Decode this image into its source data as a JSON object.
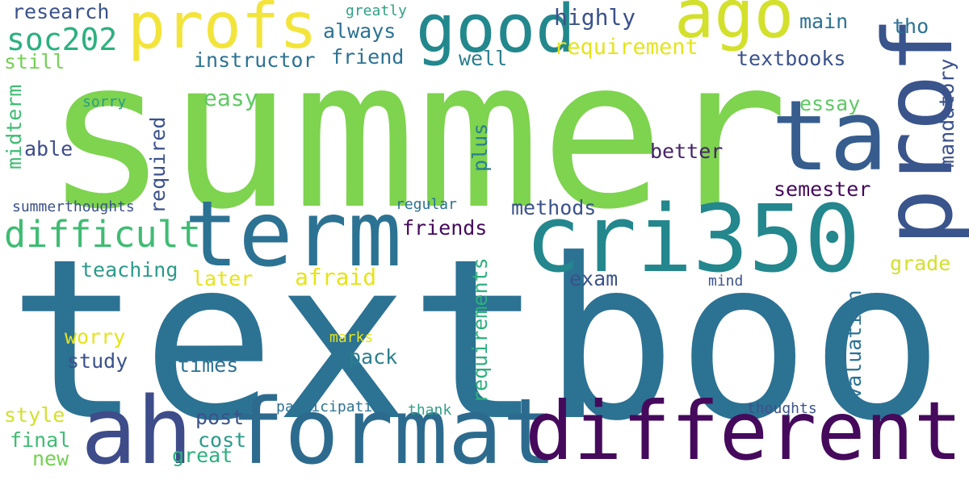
{
  "words": {
    "summer": "summer",
    "textbook": "textbook",
    "term": "term",
    "cri350": "cri350",
    "format": "format",
    "different": "different",
    "profs": "profs",
    "good": "good",
    "ago": "ago",
    "ta": "ta",
    "prof": "prof",
    "ah": "ah",
    "difficult": "difficult",
    "soc202": "soc202",
    "research": "research",
    "instructor": "instructor",
    "friend": "friend",
    "always": "always",
    "well": "well",
    "highly": "highly",
    "requirement": "requirement",
    "main": "main",
    "tho": "tho",
    "textbooks": "textbooks",
    "greatly": "greatly",
    "still": "still",
    "easy": "easy",
    "essay": "essay",
    "sorry": "sorry",
    "midterm": "midterm",
    "able": "able",
    "required": "required",
    "plus": "plus",
    "better": "better",
    "mandatory": "mandatory",
    "semester": "semester",
    "summerthoughts": "summerthoughts",
    "regular": "regular",
    "methods": "methods",
    "friends": "friends",
    "teaching": "teaching",
    "later": "later",
    "afraid": "afraid",
    "exam": "exam",
    "grade": "grade",
    "mind": "mind",
    "requirements": "requirements",
    "evaluation": "evaluation",
    "worry": "worry",
    "marks": "marks",
    "study": "study",
    "times": "times",
    "pack": "pack",
    "style": "style",
    "post": "post",
    "participation": "participation",
    "thank": "thank",
    "thoughts": "thoughts",
    "final": "final",
    "cost": "cost",
    "new": "new",
    "great": "great"
  }
}
